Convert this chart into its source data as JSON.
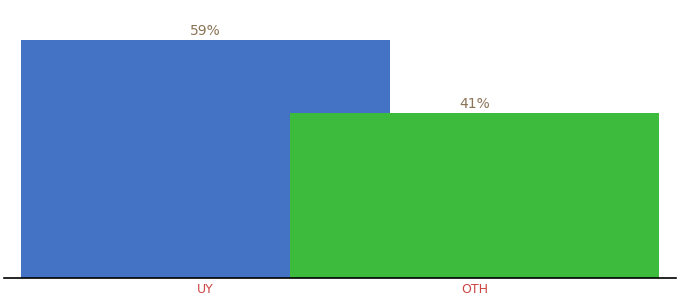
{
  "categories": [
    "UY",
    "OTH"
  ],
  "values": [
    59,
    41
  ],
  "bar_colors": [
    "#4472C4",
    "#3CBB3C"
  ],
  "label_color": "#8B7355",
  "xlabel_color": "#CC4444",
  "background_color": "#ffffff",
  "ylim": [
    0,
    68
  ],
  "bar_width": 0.55,
  "label_fontsize": 10,
  "xlabel_fontsize": 9,
  "x_positions": [
    0.3,
    0.7
  ]
}
